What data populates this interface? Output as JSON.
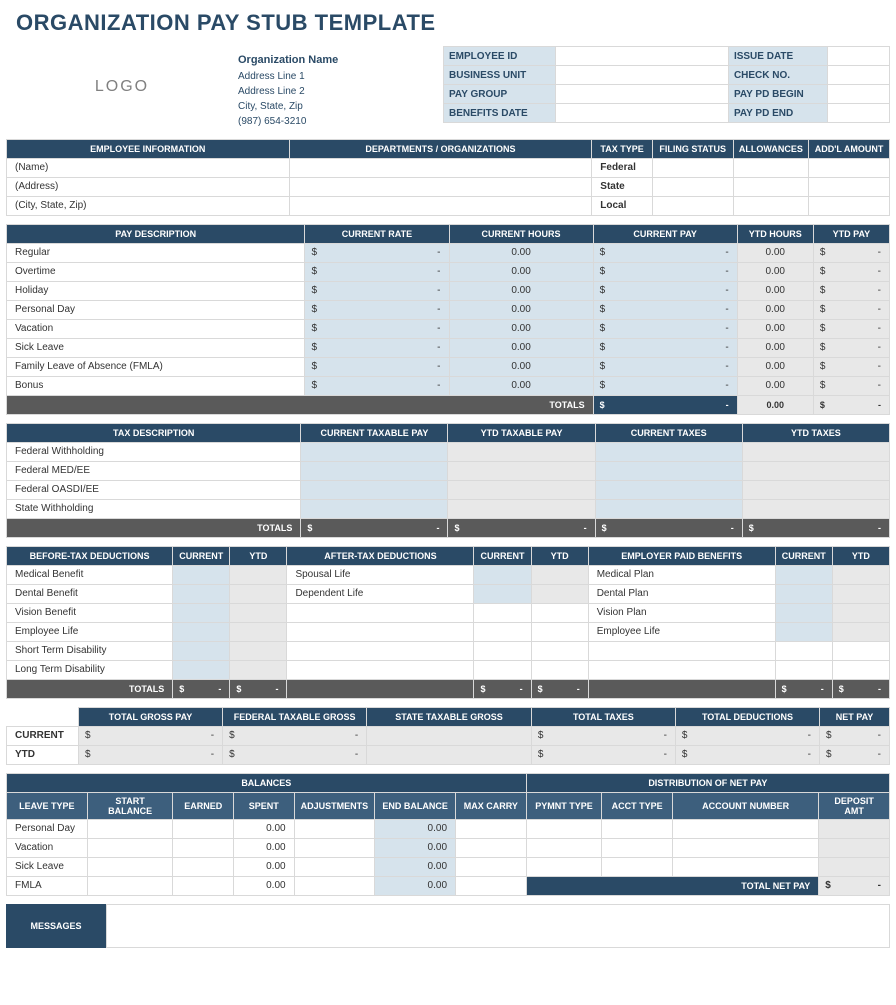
{
  "title": "ORGANIZATION PAY STUB TEMPLATE",
  "logo": "LOGO",
  "org": {
    "name": "Organization Name",
    "line1": "Address Line 1",
    "line2": "Address Line 2",
    "line3": "City, State, Zip",
    "phone": "(987) 654-3210"
  },
  "meta_left": [
    {
      "label": "EMPLOYEE ID",
      "value": ""
    },
    {
      "label": "BUSINESS UNIT",
      "value": ""
    },
    {
      "label": "PAY GROUP",
      "value": ""
    },
    {
      "label": "BENEFITS DATE",
      "value": ""
    }
  ],
  "meta_right": [
    {
      "label": "ISSUE DATE",
      "value": ""
    },
    {
      "label": "CHECK NO.",
      "value": ""
    },
    {
      "label": "PAY PD BEGIN",
      "value": ""
    },
    {
      "label": "PAY PD END",
      "value": ""
    }
  ],
  "emp_info_headers": [
    "EMPLOYEE INFORMATION",
    "DEPARTMENTS / ORGANIZATIONS",
    "TAX TYPE",
    "FILING STATUS",
    "ALLOWANCES",
    "ADD'L AMOUNT"
  ],
  "emp_info_rows": [
    {
      "col1": "(Name)",
      "taxtype": "Federal"
    },
    {
      "col1": "(Address)",
      "taxtype": "State"
    },
    {
      "col1": "(City, State, Zip)",
      "taxtype": "Local"
    }
  ],
  "pay_headers": [
    "PAY DESCRIPTION",
    "CURRENT RATE",
    "CURRENT HOURS",
    "CURRENT PAY",
    "YTD HOURS",
    "YTD PAY"
  ],
  "pay_rows": [
    {
      "desc": "Regular",
      "rate": "-",
      "hours": "0.00",
      "pay": "-",
      "ytdH": "0.00",
      "ytdP": "-"
    },
    {
      "desc": "Overtime",
      "rate": "-",
      "hours": "0.00",
      "pay": "-",
      "ytdH": "0.00",
      "ytdP": "-"
    },
    {
      "desc": "Holiday",
      "rate": "-",
      "hours": "0.00",
      "pay": "-",
      "ytdH": "0.00",
      "ytdP": "-"
    },
    {
      "desc": "Personal Day",
      "rate": "-",
      "hours": "0.00",
      "pay": "-",
      "ytdH": "0.00",
      "ytdP": "-"
    },
    {
      "desc": "Vacation",
      "rate": "-",
      "hours": "0.00",
      "pay": "-",
      "ytdH": "0.00",
      "ytdP": "-"
    },
    {
      "desc": "Sick Leave",
      "rate": "-",
      "hours": "0.00",
      "pay": "-",
      "ytdH": "0.00",
      "ytdP": "-"
    },
    {
      "desc": "Family Leave of Absence (FMLA)",
      "rate": "-",
      "hours": "0.00",
      "pay": "-",
      "ytdH": "0.00",
      "ytdP": "-"
    },
    {
      "desc": "Bonus",
      "rate": "-",
      "hours": "0.00",
      "pay": "-",
      "ytdH": "0.00",
      "ytdP": "-"
    }
  ],
  "pay_totals": {
    "label": "TOTALS",
    "pay": "-",
    "ytdH": "0.00",
    "ytdP": "-"
  },
  "tax_headers": [
    "TAX DESCRIPTION",
    "CURRENT TAXABLE PAY",
    "YTD TAXABLE PAY",
    "CURRENT TAXES",
    "YTD TAXES"
  ],
  "tax_rows": [
    "Federal Withholding",
    "Federal MED/EE",
    "Federal OASDI/EE",
    "State Withholding"
  ],
  "tax_totals_label": "TOTALS",
  "ded_headers": {
    "before": "BEFORE-TAX DEDUCTIONS",
    "current": "CURRENT",
    "ytd": "YTD",
    "after": "AFTER-TAX DEDUCTIONS",
    "employer": "EMPLOYER PAID BENEFITS"
  },
  "ded_before": [
    "Medical Benefit",
    "Dental Benefit",
    "Vision Benefit",
    "Employee Life",
    "Short Term Disability",
    "Long Term Disability"
  ],
  "ded_after": [
    "Spousal Life",
    "Dependent Life"
  ],
  "ded_employer": [
    "Medical Plan",
    "Dental Plan",
    "Vision Plan",
    "Employee Life"
  ],
  "ded_totals_label": "TOTALS",
  "summary_headers": [
    "",
    "TOTAL GROSS PAY",
    "FEDERAL TAXABLE GROSS",
    "STATE TAXABLE GROSS",
    "TOTAL TAXES",
    "TOTAL DEDUCTIONS",
    "NET PAY"
  ],
  "summary_rows": [
    {
      "label": "CURRENT"
    },
    {
      "label": "YTD"
    }
  ],
  "bal_section": "BALANCES",
  "dist_section": "DISTRIBUTION OF NET PAY",
  "bal_headers": [
    "LEAVE TYPE",
    "START BALANCE",
    "EARNED",
    "SPENT",
    "ADJUSTMENTS",
    "END BALANCE",
    "MAX CARRY"
  ],
  "dist_headers": [
    "PYMNT TYPE",
    "ACCT TYPE",
    "ACCOUNT NUMBER",
    "DEPOSIT AMT"
  ],
  "bal_rows": [
    {
      "type": "Personal Day",
      "spent": "0.00",
      "end": "0.00"
    },
    {
      "type": "Vacation",
      "spent": "0.00",
      "end": "0.00"
    },
    {
      "type": "Sick Leave",
      "spent": "0.00",
      "end": "0.00"
    },
    {
      "type": "FMLA",
      "spent": "0.00",
      "end": "0.00"
    }
  ],
  "total_net_label": "TOTAL NET PAY",
  "messages_label": "MESSAGES",
  "colors": {
    "dark": "#2a4a66",
    "light": "#d6e3ec",
    "gray": "#5a5a5a",
    "graycell": "#e8e8e8",
    "border": "#d9d9d9"
  }
}
